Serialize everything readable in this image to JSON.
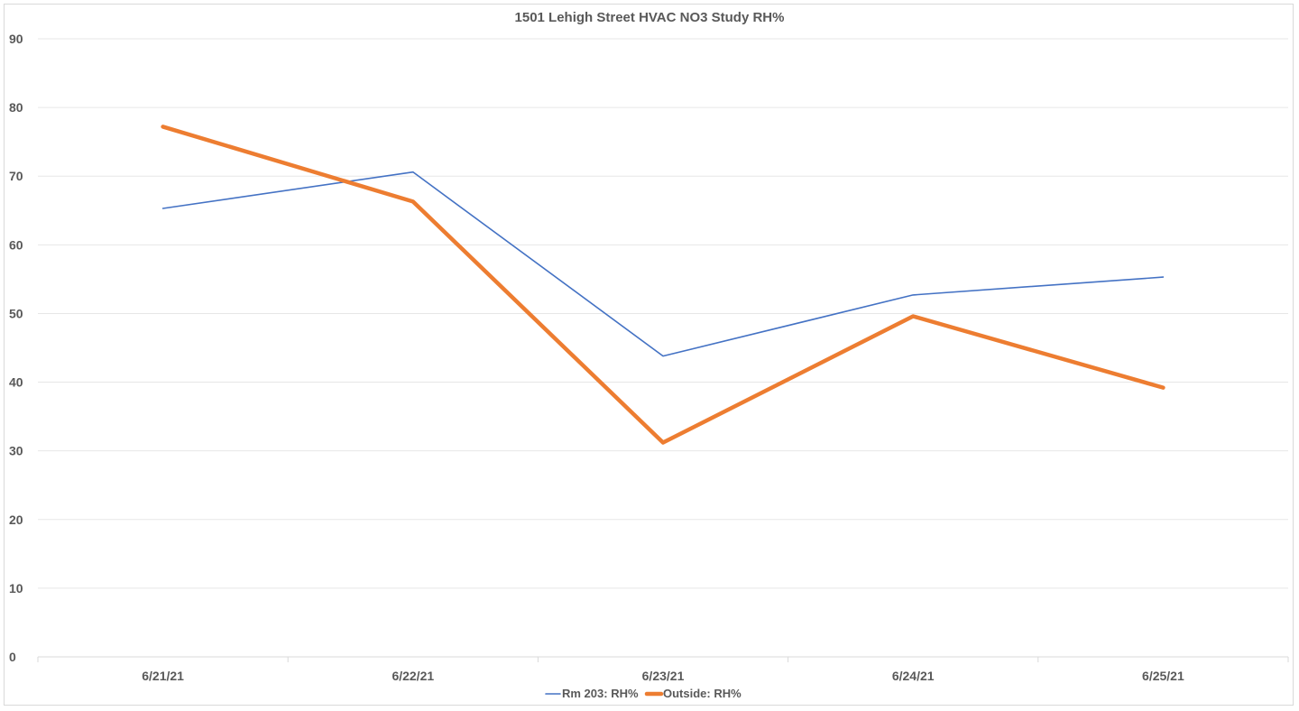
{
  "chart_data": {
    "type": "line",
    "title": "1501 Lehigh Street HVAC NO3 Study RH%",
    "xlabel": "",
    "ylabel": "",
    "categories": [
      "6/21/21",
      "6/22/21",
      "6/23/21",
      "6/24/21",
      "6/25/21"
    ],
    "ylim": [
      0,
      90
    ],
    "yticks": [
      0,
      10,
      20,
      30,
      40,
      50,
      60,
      70,
      80,
      90
    ],
    "grid": true,
    "legend_position": "bottom",
    "series": [
      {
        "name": "Rm 203: RH%",
        "values": [
          65.3,
          70.6,
          43.8,
          52.7,
          55.3
        ],
        "color": "#4472c4"
      },
      {
        "name": "Outside: RH%",
        "values": [
          77.2,
          66.3,
          31.2,
          49.6,
          39.2
        ],
        "color": "#ed7d31"
      }
    ]
  }
}
